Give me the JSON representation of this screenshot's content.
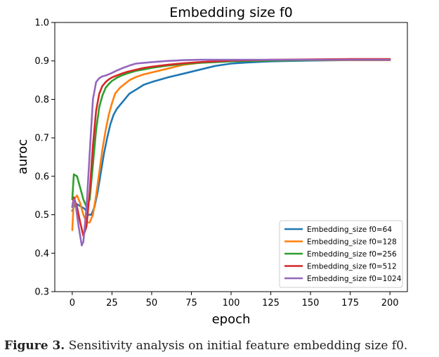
{
  "chart_data": {
    "type": "line",
    "title": "Embedding size f0",
    "xlabel": "epoch",
    "ylabel": "auroc",
    "xlim": [
      -11,
      211
    ],
    "ylim": [
      0.3,
      1.0
    ],
    "x_ticks": [
      "0",
      "25",
      "50",
      "75",
      "100",
      "125",
      "150",
      "175",
      "200"
    ],
    "y_ticks": [
      "0.3",
      "0.4",
      "0.5",
      "0.6",
      "0.7",
      "0.8",
      "0.9",
      "1.0"
    ],
    "grid": false,
    "legend_position": "lower-right",
    "series": [
      {
        "name": "Embedding_size f0=64",
        "color": "#1f77b4",
        "x": [
          0,
          2,
          4,
          6,
          8,
          10,
          12,
          14,
          16,
          18,
          20,
          22,
          24,
          26,
          28,
          30,
          33,
          36,
          40,
          45,
          50,
          60,
          70,
          80,
          90,
          100,
          110,
          125,
          150,
          175,
          200
        ],
        "y": [
          0.51,
          0.53,
          0.525,
          0.52,
          0.515,
          0.5,
          0.5,
          0.52,
          0.56,
          0.61,
          0.66,
          0.7,
          0.735,
          0.76,
          0.775,
          0.785,
          0.8,
          0.815,
          0.825,
          0.838,
          0.845,
          0.857,
          0.867,
          0.877,
          0.887,
          0.893,
          0.896,
          0.899,
          0.901,
          0.902,
          0.902
        ]
      },
      {
        "name": "Embedding_size f0=128",
        "color": "#ff7f0e",
        "x": [
          0,
          1,
          3,
          5,
          7,
          9,
          11,
          13,
          15,
          17,
          19,
          21,
          23,
          25,
          27,
          30,
          33,
          36,
          40,
          45,
          50,
          60,
          70,
          80,
          90,
          100,
          125,
          150,
          175,
          200
        ],
        "y": [
          0.46,
          0.54,
          0.55,
          0.53,
          0.5,
          0.48,
          0.48,
          0.5,
          0.55,
          0.61,
          0.67,
          0.72,
          0.76,
          0.79,
          0.815,
          0.83,
          0.84,
          0.85,
          0.858,
          0.865,
          0.87,
          0.88,
          0.89,
          0.895,
          0.898,
          0.9,
          0.901,
          0.902,
          0.902,
          0.902
        ]
      },
      {
        "name": "Embedding_size f0=256",
        "color": "#2ca02c",
        "x": [
          0,
          1,
          3,
          5,
          7,
          9,
          11,
          13,
          15,
          17,
          19,
          21,
          23,
          25,
          28,
          31,
          35,
          40,
          45,
          50,
          60,
          70,
          80,
          90,
          100,
          125,
          150,
          175,
          200
        ],
        "y": [
          0.54,
          0.605,
          0.6,
          0.57,
          0.54,
          0.52,
          0.54,
          0.63,
          0.72,
          0.78,
          0.81,
          0.83,
          0.84,
          0.848,
          0.856,
          0.862,
          0.868,
          0.874,
          0.878,
          0.882,
          0.888,
          0.892,
          0.895,
          0.897,
          0.899,
          0.901,
          0.902,
          0.903,
          0.903
        ]
      },
      {
        "name": "Embedding_size f0=512",
        "color": "#d62728",
        "x": [
          0,
          1,
          3,
          5,
          7,
          9,
          11,
          13,
          15,
          17,
          19,
          21,
          23,
          25,
          28,
          31,
          35,
          40,
          45,
          50,
          60,
          70,
          80,
          90,
          100,
          125,
          150,
          175,
          200
        ],
        "y": [
          0.52,
          0.545,
          0.52,
          0.48,
          0.445,
          0.47,
          0.56,
          0.68,
          0.77,
          0.815,
          0.835,
          0.845,
          0.852,
          0.857,
          0.862,
          0.867,
          0.872,
          0.877,
          0.882,
          0.885,
          0.89,
          0.894,
          0.897,
          0.899,
          0.901,
          0.903,
          0.904,
          0.905,
          0.905
        ]
      },
      {
        "name": "Embedding_size f0=1024",
        "color": "#9467bd",
        "x": [
          0,
          1,
          2,
          4,
          6,
          7,
          9,
          11,
          13,
          15,
          17,
          19,
          21,
          24,
          28,
          32,
          36,
          40,
          45,
          50,
          60,
          70,
          80,
          100,
          125,
          150,
          175,
          200
        ],
        "y": [
          0.52,
          0.54,
          0.53,
          0.47,
          0.42,
          0.43,
          0.52,
          0.66,
          0.8,
          0.845,
          0.855,
          0.86,
          0.862,
          0.867,
          0.875,
          0.882,
          0.888,
          0.893,
          0.895,
          0.897,
          0.9,
          0.902,
          0.903,
          0.903,
          0.903,
          0.903,
          0.903,
          0.903
        ]
      }
    ]
  },
  "caption": {
    "label": "Figure 3.",
    "text": " Sensitivity analysis on initial feature embedding size f0."
  }
}
